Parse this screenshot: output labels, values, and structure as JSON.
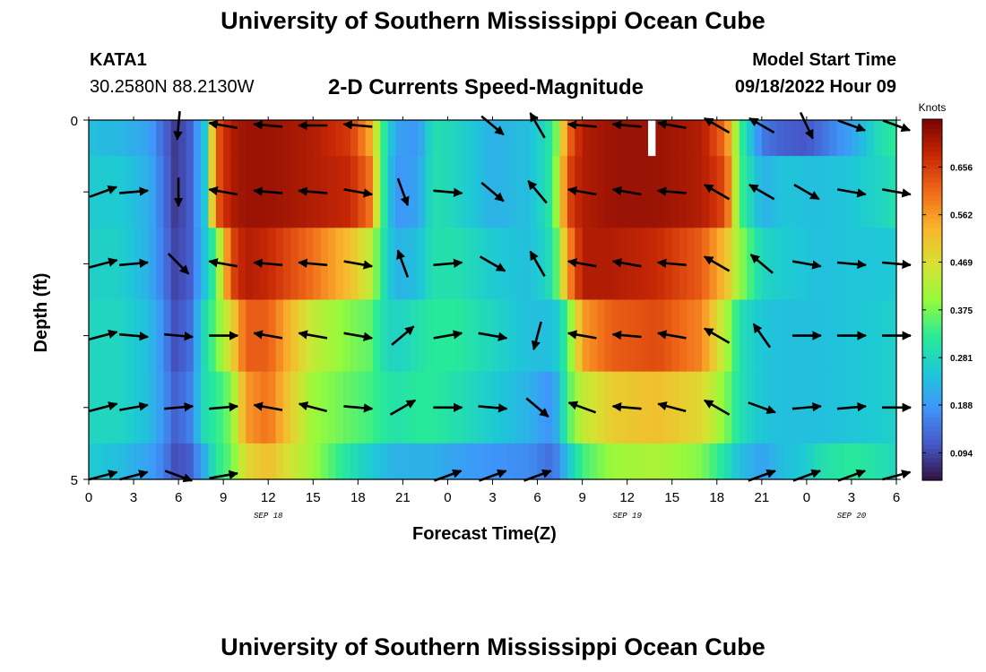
{
  "header": {
    "title": "University of Southern Mississippi Ocean Cube",
    "station": "KATA1",
    "coords": "30.2580N  88.2130W",
    "product": "2-D Currents Speed-Magnitude",
    "model_start_label": "Model Start Time",
    "model_start_value": "09/18/2022 Hour 09"
  },
  "footer": {
    "title": "University of Southern Mississippi Ocean Cube"
  },
  "chart_data": {
    "type": "heatmap",
    "xlabel": "Forecast Time(Z)",
    "ylabel": "Depth (ft)",
    "x_tick_labels": [
      "0",
      "3",
      "6",
      "9",
      "12",
      "15",
      "18",
      "21",
      "0",
      "3",
      "6",
      "9",
      "12",
      "15",
      "18",
      "21",
      "0",
      "3",
      "6"
    ],
    "x_hours": [
      0,
      3,
      6,
      9,
      12,
      15,
      18,
      21,
      24,
      27,
      30,
      33,
      36,
      39,
      42,
      45,
      48,
      51,
      54
    ],
    "xlim": [
      0,
      54
    ],
    "date_labels": [
      {
        "hour": 12,
        "text": "SEP 18"
      },
      {
        "hour": 36,
        "text": "SEP 19"
      },
      {
        "hour": 51,
        "text": "SEP 20"
      }
    ],
    "y_tick_labels": [
      "0",
      "5"
    ],
    "ylim": [
      0,
      5
    ],
    "depth_levels": [
      0.5,
      1.5,
      2.5,
      3.5,
      4.5
    ],
    "speed_profile": {
      "hours": [
        0,
        2,
        4,
        5,
        5.8,
        6.8,
        7.8,
        8.5,
        9.5,
        10.5,
        12,
        15,
        17.5,
        18.8,
        19.6,
        20.5,
        22,
        23,
        24.5,
        27,
        29.5,
        30.7,
        31.3,
        32,
        33,
        35,
        38,
        41,
        42.6,
        43.5,
        45,
        46.5,
        48,
        49,
        51,
        53,
        54
      ],
      "levels": [
        [
          0.24,
          0.23,
          0.2,
          0.13,
          0.08,
          0.12,
          0.26,
          0.62,
          0.7,
          0.72,
          0.72,
          0.7,
          0.66,
          0.55,
          0.35,
          0.2,
          0.18,
          0.3,
          0.28,
          0.22,
          0.24,
          0.3,
          0.38,
          0.6,
          0.7,
          0.72,
          0.72,
          0.7,
          0.6,
          0.35,
          0.15,
          0.12,
          0.11,
          0.14,
          0.2,
          0.3,
          0.32
        ],
        [
          0.26,
          0.26,
          0.22,
          0.14,
          0.08,
          0.12,
          0.26,
          0.62,
          0.7,
          0.72,
          0.72,
          0.7,
          0.68,
          0.6,
          0.35,
          0.18,
          0.2,
          0.3,
          0.28,
          0.22,
          0.24,
          0.3,
          0.4,
          0.64,
          0.7,
          0.72,
          0.72,
          0.7,
          0.64,
          0.35,
          0.22,
          0.25,
          0.24,
          0.24,
          0.25,
          0.28,
          0.3
        ],
        [
          0.27,
          0.27,
          0.22,
          0.15,
          0.09,
          0.12,
          0.25,
          0.35,
          0.64,
          0.7,
          0.68,
          0.6,
          0.52,
          0.44,
          0.32,
          0.22,
          0.24,
          0.3,
          0.3,
          0.26,
          0.24,
          0.28,
          0.36,
          0.56,
          0.7,
          0.7,
          0.68,
          0.62,
          0.52,
          0.4,
          0.28,
          0.26,
          0.25,
          0.24,
          0.25,
          0.25,
          0.26
        ],
        [
          0.28,
          0.28,
          0.24,
          0.17,
          0.1,
          0.14,
          0.3,
          0.36,
          0.48,
          0.62,
          0.62,
          0.44,
          0.38,
          0.36,
          0.3,
          0.27,
          0.3,
          0.32,
          0.32,
          0.28,
          0.24,
          0.24,
          0.26,
          0.34,
          0.56,
          0.62,
          0.64,
          0.58,
          0.42,
          0.3,
          0.25,
          0.24,
          0.24,
          0.24,
          0.25,
          0.26,
          0.27
        ],
        [
          0.28,
          0.28,
          0.24,
          0.18,
          0.12,
          0.16,
          0.3,
          0.32,
          0.38,
          0.56,
          0.6,
          0.4,
          0.36,
          0.34,
          0.32,
          0.3,
          0.32,
          0.32,
          0.3,
          0.26,
          0.22,
          0.18,
          0.22,
          0.34,
          0.44,
          0.5,
          0.52,
          0.48,
          0.38,
          0.3,
          0.25,
          0.24,
          0.24,
          0.24,
          0.25,
          0.26,
          0.27
        ],
        [
          0.26,
          0.24,
          0.2,
          0.16,
          0.1,
          0.12,
          0.22,
          0.32,
          0.36,
          0.48,
          0.52,
          0.4,
          0.3,
          0.26,
          0.24,
          0.22,
          0.22,
          0.22,
          0.2,
          0.18,
          0.17,
          0.14,
          0.16,
          0.24,
          0.34,
          0.4,
          0.42,
          0.38,
          0.3,
          0.24,
          0.2,
          0.24,
          0.26,
          0.3,
          0.32,
          0.3,
          0.28
        ]
      ]
    },
    "vectors": {
      "hours": [
        0,
        3,
        6,
        9,
        12,
        15,
        18,
        21,
        24,
        27,
        30,
        33,
        36,
        39,
        42,
        45,
        48,
        51,
        54
      ],
      "angles_deg": [
        [
          null,
          null,
          95,
          -170,
          -175,
          180,
          -175,
          null,
          null,
          40,
          -120,
          -175,
          -175,
          -170,
          -150,
          -150,
          65,
          20,
          20
        ],
        [
          -20,
          -5,
          90,
          -170,
          -175,
          -175,
          10,
          70,
          5,
          40,
          -130,
          -170,
          -170,
          -175,
          -150,
          -150,
          30,
          10,
          10
        ],
        [
          -15,
          -5,
          45,
          -170,
          -175,
          -175,
          10,
          -110,
          -5,
          30,
          -120,
          -170,
          -170,
          -175,
          -150,
          -140,
          10,
          5,
          5
        ],
        [
          -15,
          5,
          5,
          0,
          -170,
          -170,
          10,
          -40,
          -10,
          10,
          105,
          -170,
          -175,
          -170,
          -150,
          -125,
          0,
          0,
          0
        ],
        [
          -15,
          -10,
          -5,
          -5,
          -170,
          -165,
          5,
          -30,
          0,
          5,
          40,
          -160,
          -175,
          -165,
          -150,
          20,
          -5,
          -5,
          0
        ],
        [
          -15,
          -15,
          20,
          -10,
          null,
          null,
          null,
          null,
          -20,
          -20,
          -20,
          null,
          null,
          null,
          null,
          -20,
          -20,
          -20,
          -15
        ]
      ]
    },
    "colorbar": {
      "title": "Knots",
      "tick_labels": [
        "0.656",
        "0.562",
        "0.469",
        "0.375",
        "0.281",
        "0.188",
        "0.094"
      ],
      "tick_values": [
        0.656,
        0.562,
        0.469,
        0.375,
        0.281,
        0.188,
        0.094
      ],
      "range": [
        0.04,
        0.75
      ],
      "colormap": "turbo"
    }
  }
}
